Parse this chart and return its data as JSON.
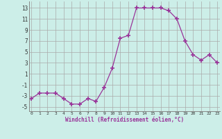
{
  "x": [
    0,
    1,
    2,
    3,
    4,
    5,
    6,
    7,
    8,
    9,
    10,
    11,
    12,
    13,
    14,
    15,
    16,
    17,
    18,
    19,
    20,
    21,
    22,
    23
  ],
  "y": [
    -3.5,
    -2.5,
    -2.5,
    -2.5,
    -3.5,
    -4.5,
    -4.5,
    -3.5,
    -4.0,
    -1.5,
    2.0,
    7.5,
    8.0,
    13.0,
    13.0,
    13.0,
    13.0,
    12.5,
    11.0,
    7.0,
    4.5,
    3.5,
    4.5,
    3.0
  ],
  "line_color": "#993399",
  "marker": "+",
  "marker_size": 4,
  "bg_color": "#cceee8",
  "grid_color": "#aaaaaa",
  "xlabel": "Windchill (Refroidissement éolien,°C)",
  "ytick_labels": [
    "13",
    "11",
    "9",
    "7",
    "5",
    "3",
    "1",
    "-1",
    "-3",
    "-5"
  ],
  "ytick_vals": [
    13,
    11,
    9,
    7,
    5,
    3,
    1,
    -1,
    -3,
    -5
  ],
  "xtick_labels": [
    "0",
    "1",
    "2",
    "3",
    "4",
    "5",
    "6",
    "7",
    "8",
    "9",
    "10",
    "11",
    "12",
    "13",
    "14",
    "15",
    "16",
    "17",
    "18",
    "19",
    "20",
    "21",
    "22",
    "23"
  ],
  "xtick_vals": [
    0,
    1,
    2,
    3,
    4,
    5,
    6,
    7,
    8,
    9,
    10,
    11,
    12,
    13,
    14,
    15,
    16,
    17,
    18,
    19,
    20,
    21,
    22,
    23
  ],
  "ylim": [
    -5.8,
    14.2
  ],
  "xlim": [
    -0.3,
    23.3
  ]
}
